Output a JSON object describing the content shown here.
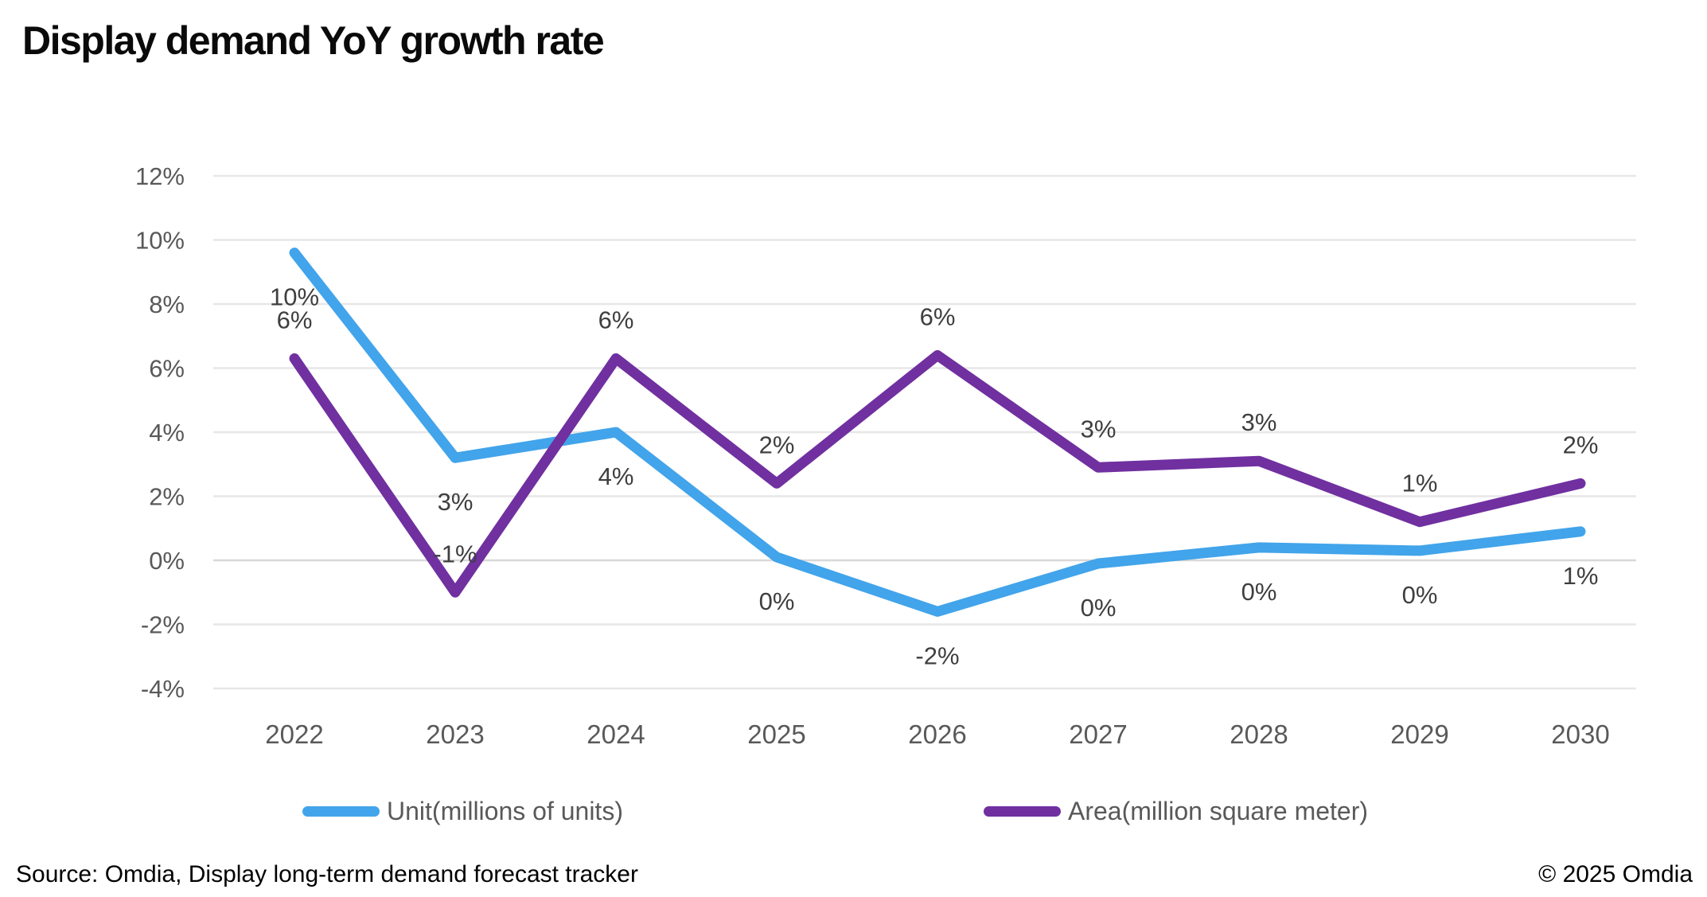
{
  "title": "Display demand YoY growth rate",
  "footer": {
    "source": "Source: Omdia, Display long-term demand forecast tracker",
    "copyright": "© 2025 Omdia"
  },
  "legend": [
    {
      "label": "Unit(millions of units)",
      "color": "#42A4EA"
    },
    {
      "label": "Area(million square meter)",
      "color": "#7030A0"
    }
  ],
  "chart_data": {
    "type": "line",
    "title": "Display demand YoY growth rate",
    "xlabel": "",
    "ylabel": "",
    "categories": [
      "2022",
      "2023",
      "2024",
      "2025",
      "2026",
      "2027",
      "2028",
      "2029",
      "2030"
    ],
    "series": [
      {
        "name": "Unit(millions of units)",
        "color": "#42A4EA",
        "values": [
          9.6,
          3.2,
          4.0,
          0.1,
          -1.6,
          -0.1,
          0.4,
          0.3,
          0.9
        ],
        "labels": [
          "10%",
          "3%",
          "4%",
          "0%",
          "-2%",
          "0%",
          "0%",
          "0%",
          "1%"
        ],
        "label_position": "below"
      },
      {
        "name": "Area(million square meter)",
        "color": "#7030A0",
        "values": [
          6.3,
          -1.0,
          6.3,
          2.4,
          6.4,
          2.9,
          3.1,
          1.2,
          2.4
        ],
        "labels": [
          "6%",
          "-1%",
          "6%",
          "2%",
          "6%",
          "3%",
          "3%",
          "1%",
          "2%"
        ],
        "label_position": "above"
      }
    ],
    "ylim": [
      -4,
      12
    ],
    "ytick_step": 2,
    "yticks": [
      "12%",
      "10%",
      "8%",
      "6%",
      "4%",
      "2%",
      "0%",
      "-2%",
      "-4%"
    ],
    "grid": true,
    "legend_position": "bottom",
    "colors": {
      "gridline": "#E7E7E7",
      "zero_line": "#D8D8D8",
      "axis_label": "#595959",
      "data_label": "#3F3F3F"
    }
  }
}
